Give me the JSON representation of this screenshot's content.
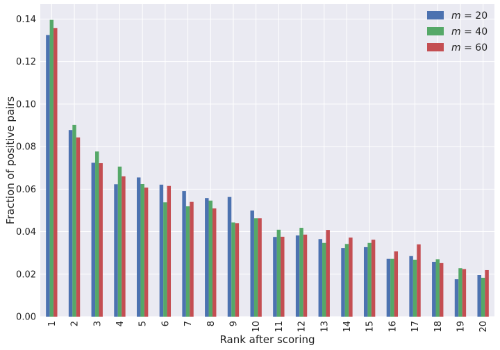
{
  "chart_data": {
    "type": "bar",
    "xlabel": "Rank after scoring",
    "ylabel": "Fraction of positive pairs",
    "categories": [
      "1",
      "2",
      "3",
      "4",
      "5",
      "6",
      "7",
      "8",
      "9",
      "10",
      "11",
      "12",
      "13",
      "14",
      "15",
      "16",
      "17",
      "18",
      "19",
      "20"
    ],
    "ylim": [
      0,
      0.147
    ],
    "yticks": [
      "0.00",
      "0.02",
      "0.04",
      "0.06",
      "0.08",
      "0.10",
      "0.12",
      "0.14"
    ],
    "grid": true,
    "legend_position": "top-right",
    "series": [
      {
        "name_var": "m",
        "name_eq": " = ",
        "name_val": "20",
        "color": "#4c72b0",
        "values": [
          0.1325,
          0.0878,
          0.0724,
          0.0623,
          0.0655,
          0.0621,
          0.0591,
          0.0558,
          0.0563,
          0.0499,
          0.0375,
          0.0382,
          0.0365,
          0.0323,
          0.0327,
          0.0272,
          0.0285,
          0.0258,
          0.0176,
          0.0196
        ]
      },
      {
        "name_var": "m",
        "name_eq": " = ",
        "name_val": "40",
        "color": "#55a868",
        "values": [
          0.1396,
          0.0902,
          0.0777,
          0.0706,
          0.0624,
          0.0538,
          0.0519,
          0.0546,
          0.0443,
          0.0463,
          0.0409,
          0.0418,
          0.0347,
          0.0342,
          0.0347,
          0.0272,
          0.0268,
          0.027,
          0.0228,
          0.0183
        ]
      },
      {
        "name_var": "m",
        "name_eq": " = ",
        "name_val": "60",
        "color": "#c44e52",
        "values": [
          0.1358,
          0.0843,
          0.0722,
          0.066,
          0.0607,
          0.0615,
          0.054,
          0.0509,
          0.044,
          0.0463,
          0.0376,
          0.0386,
          0.0408,
          0.0372,
          0.0362,
          0.0307,
          0.034,
          0.0252,
          0.0224,
          0.0219
        ]
      }
    ]
  }
}
